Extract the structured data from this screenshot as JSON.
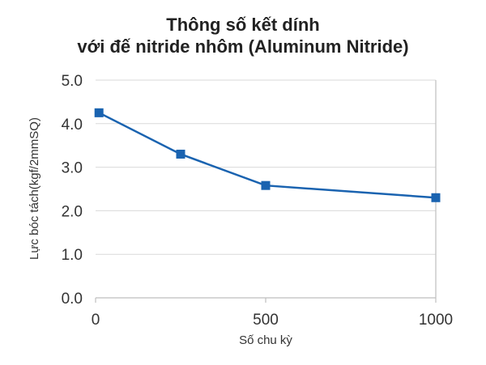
{
  "chart_data": {
    "type": "line",
    "title": [
      "Thông số kết dính",
      "với đế nitride nhôm (Aluminum Nitride)"
    ],
    "xlabel": "Số chu kỳ",
    "ylabel": "Lực bóc tách(kgf/2mmSQ)",
    "x_ticks": [
      "0",
      "500",
      "1000"
    ],
    "x_tick_values": [
      0,
      500,
      1000
    ],
    "y_ticks": [
      "0.0",
      "1.0",
      "2.0",
      "3.0",
      "4.0",
      "5.0"
    ],
    "y_tick_values": [
      0,
      1,
      2,
      3,
      4,
      5
    ],
    "xlim": [
      0,
      1000
    ],
    "ylim": [
      0,
      5
    ],
    "grid": true,
    "series": [
      {
        "x": [
          10,
          250,
          500,
          1000
        ],
        "values": [
          4.25,
          3.3,
          2.58,
          2.3
        ],
        "color": "#1a63b0"
      }
    ]
  }
}
